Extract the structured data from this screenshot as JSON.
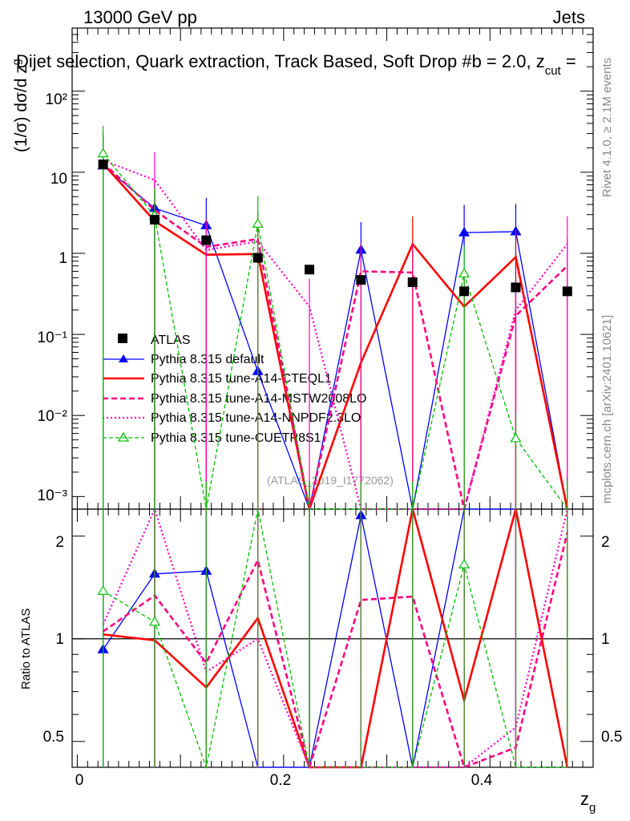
{
  "header": {
    "left": "13000 GeV pp",
    "right": "Jets",
    "title": "Dijet selection, Quark extraction, Track Based, Soft Drop #b = 2.0, z",
    "title_sub": "cut",
    "title_tail": " ="
  },
  "side_labels": {
    "rivet": "Rivet 4.1.0, ≥ 2.1M events",
    "mcplots": "mcplots.cern.ch [arXiv:2401.10621]"
  },
  "watermark": "(ATLAS_2019_I1772062)",
  "axes": {
    "ylabel_main": "(1/σ) dσ/d z",
    "ylabel_main_sub": "g",
    "ylabel_ratio": "Ratio to ATLAS",
    "xlabel": "z",
    "xlabel_sub": "g",
    "main_ticks": [
      "10⁻³",
      "10⁻²",
      "10⁻¹",
      "1",
      "10",
      "10²"
    ],
    "ratio_ticks": [
      "0.5",
      "1",
      "2"
    ],
    "x_ticks": [
      "0",
      "0.2",
      "0.4"
    ]
  },
  "chart_data": {
    "type": "line",
    "x": [
      0.025,
      0.075,
      0.125,
      0.175,
      0.225,
      0.275,
      0.325,
      0.375,
      0.425,
      0.475
    ],
    "xlim": [
      -0.005,
      0.5
    ],
    "ylim_main": [
      0.0007,
      600
    ],
    "ylim_ratio": [
      0.42,
      2.4
    ],
    "colors": {
      "data": "#000000",
      "default": "#0000ff",
      "cteql1": "#ff0000",
      "mstw": "#ff0080",
      "nnpdf": "#ff00c0",
      "cuetp8s1": "#00c000"
    },
    "data": {
      "name": "ATLAS",
      "values": [
        12.5,
        2.6,
        1.45,
        0.88,
        0.63,
        0.47,
        0.44,
        0.34,
        0.38,
        0.34
      ]
    },
    "series": [
      {
        "key": "default",
        "name": "Pythia 8.315 default",
        "values": [
          12.0,
          3.6,
          2.2,
          0.035,
          0.0007,
          1.1,
          0.0007,
          1.8,
          1.85,
          0.0007
        ]
      },
      {
        "key": "cteql1",
        "name": "Pythia 8.315 tune-A14-CTEQL1",
        "values": [
          12.8,
          2.5,
          0.96,
          0.98,
          0.0007,
          0.045,
          1.3,
          0.22,
          0.9,
          0.0007
        ]
      },
      {
        "key": "mstw",
        "name": "Pythia 8.315 tune-A14-MSTW2008LO",
        "values": [
          13.0,
          3.4,
          1.2,
          1.5,
          0.0007,
          0.6,
          0.58,
          0.0007,
          0.17,
          0.7
        ]
      },
      {
        "key": "nnpdf",
        "name": "Pythia 8.315 tune-A14-NNPDF2.3LO",
        "values": [
          14.0,
          8.0,
          1.1,
          1.4,
          0.22,
          0.0007,
          0.0007,
          0.0007,
          0.2,
          1.3
        ]
      },
      {
        "key": "cuetp8s1",
        "name": "Pythia 8.315 tune-CUETP8S1",
        "values": [
          17.0,
          2.9,
          0.0007,
          2.3,
          0.0007,
          0.0007,
          0.0007,
          0.56,
          0.0052,
          0.0007
        ]
      }
    ],
    "ratios": {
      "default": [
        0.93,
        1.55,
        1.58,
        0.1,
        0.1,
        2.3,
        0.1,
        3.0,
        3.0,
        0.1
      ],
      "cteql1": [
        1.03,
        0.99,
        0.72,
        1.15,
        0.1,
        0.1,
        3.0,
        0.66,
        2.4,
        0.1
      ],
      "mstw": [
        1.05,
        1.34,
        0.85,
        1.7,
        0.1,
        1.3,
        1.33,
        0.1,
        0.48,
        2.05
      ],
      "nnpdf": [
        1.1,
        3.0,
        0.8,
        1.0,
        0.35,
        0.1,
        0.1,
        0.1,
        0.55,
        3.0
      ],
      "cuetp8s1": [
        1.38,
        1.12,
        0.1,
        2.6,
        0.1,
        0.1,
        0.1,
        1.65,
        0.1,
        0.1
      ]
    }
  }
}
